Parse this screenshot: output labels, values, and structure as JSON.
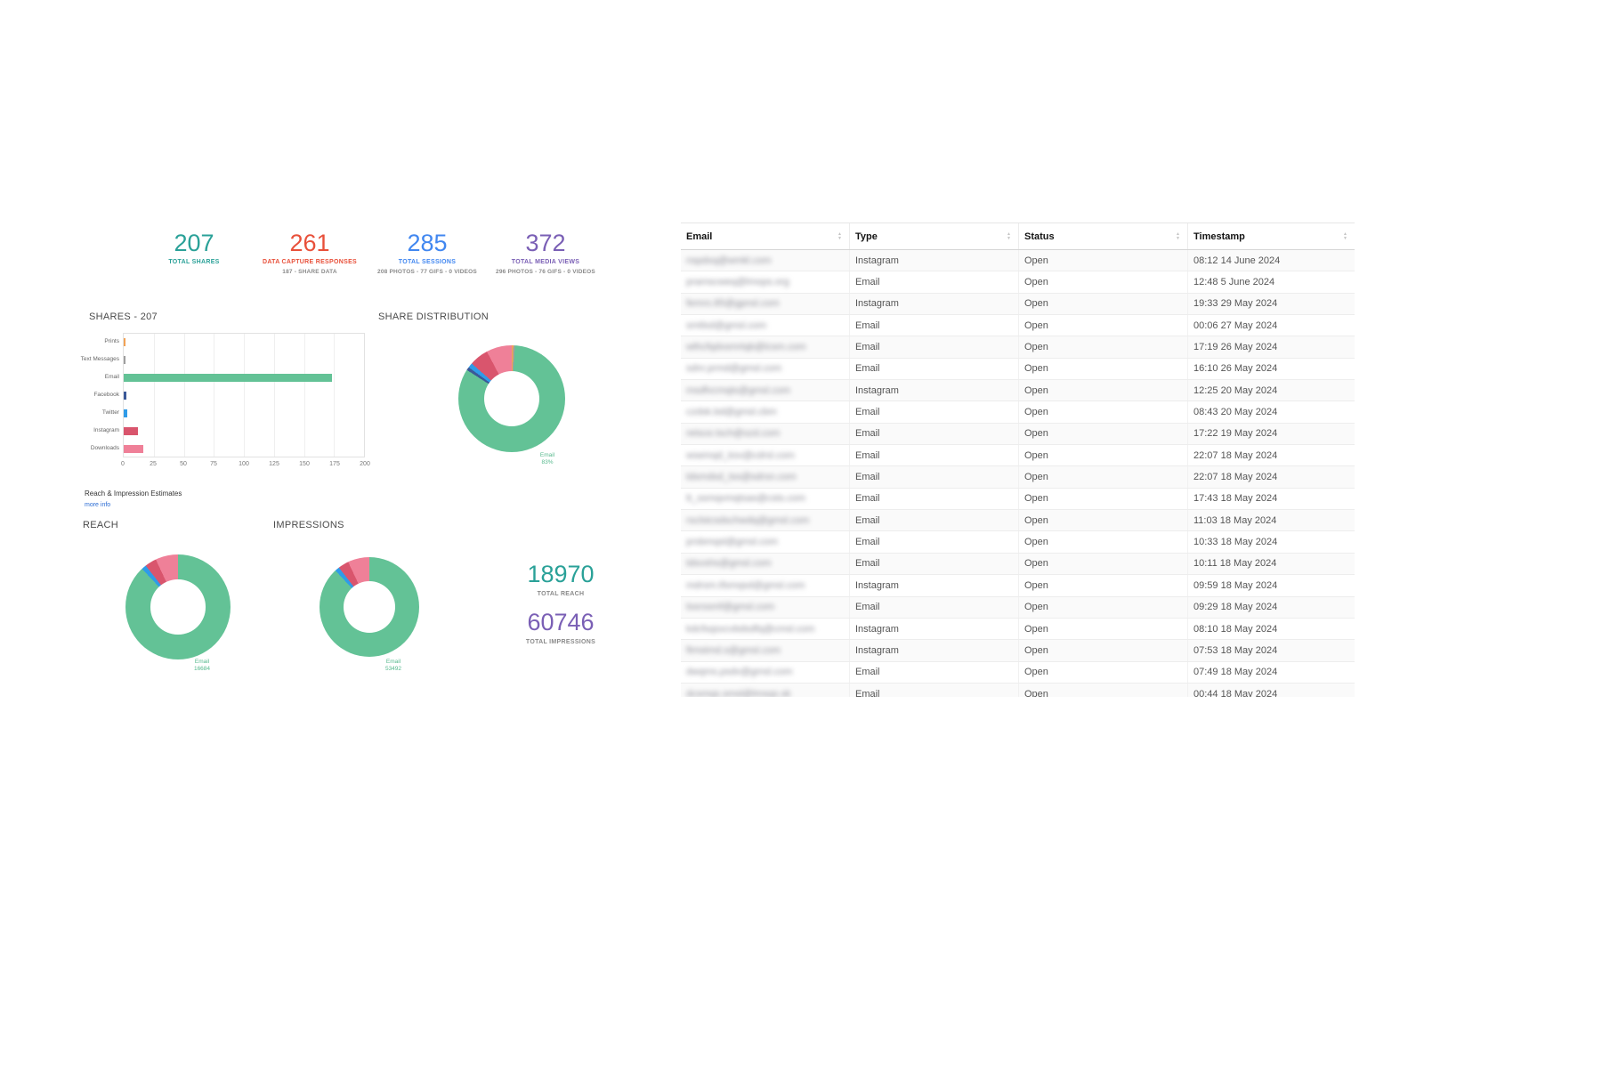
{
  "stats": [
    {
      "value": "207",
      "label": "TOTAL SHARES",
      "sub": "",
      "color": "#2aa198"
    },
    {
      "value": "261",
      "label": "DATA CAPTURE RESPONSES",
      "sub": "187 - SHARE DATA",
      "color": "#e8503a"
    },
    {
      "value": "285",
      "label": "TOTAL SESSIONS",
      "sub": "208 PHOTOS - 77 GIFS - 0 VIDEOS",
      "color": "#4187f0"
    },
    {
      "value": "372",
      "label": "TOTAL MEDIA VIEWS",
      "sub": "296 PHOTOS - 76 GIFS - 0 VIDEOS",
      "color": "#7a5fb5"
    }
  ],
  "shares_section": {
    "title": "SHARES - 207"
  },
  "share_distribution": {
    "title": "SHARE DISTRIBUTION",
    "label_name": "Email",
    "label_value": "83%"
  },
  "estimates": {
    "label": "Reach & Impression Estimates",
    "more_info": "more info",
    "checked": true,
    "checkbox_color": "#cf2e26",
    "check_glyph": "✓"
  },
  "reach": {
    "title": "REACH",
    "label_name": "Email",
    "label_value": "16684"
  },
  "impressions": {
    "title": "IMPRESSIONS",
    "label_name": "Email",
    "label_value": "53492"
  },
  "totals": {
    "reach_value": "18970",
    "reach_label": "TOTAL REACH",
    "reach_color": "#2aa198",
    "impressions_value": "60746",
    "impressions_label": "TOTAL IMPRESSIONS",
    "impressions_color": "#7a5fb5"
  },
  "chart_data": [
    {
      "type": "bar",
      "title": "SHARES - 207",
      "orientation": "horizontal",
      "categories": [
        "Prints",
        "Text Messages",
        "Email",
        "Facebook",
        "Twitter",
        "Instagram",
        "Downloads"
      ],
      "values": [
        1,
        1,
        172,
        2,
        3,
        12,
        16
      ],
      "colors": [
        "#f2a254",
        "#9e9e9e",
        "#63c296",
        "#3b5998",
        "#2f9be8",
        "#d9556d",
        "#ef8098"
      ],
      "xlabel": "",
      "ylabel": "",
      "xlim": [
        0,
        200
      ],
      "ticks": [
        0,
        25,
        50,
        75,
        100,
        125,
        150,
        175,
        200
      ],
      "grid": true
    },
    {
      "type": "pie",
      "title": "SHARE DISTRIBUTION",
      "donut": true,
      "label": "Email 83%",
      "slices": [
        {
          "label": "Prints",
          "value": 1,
          "color": "#f2a254"
        },
        {
          "label": "Text Messages",
          "value": 1,
          "color": "#9e9e9e"
        },
        {
          "label": "Email",
          "value": 172,
          "color": "#63c296"
        },
        {
          "label": "Facebook",
          "value": 2,
          "color": "#3b5998"
        },
        {
          "label": "Twitter",
          "value": 3,
          "color": "#2f9be8"
        },
        {
          "label": "Instagram",
          "value": 12,
          "color": "#d9556d"
        },
        {
          "label": "Downloads",
          "value": 16,
          "color": "#ef8098"
        }
      ]
    },
    {
      "type": "pie",
      "title": "REACH",
      "donut": true,
      "label": "Email 16684",
      "slices": [
        {
          "label": "Email",
          "value": 16684,
          "color": "#63c296"
        },
        {
          "label": "Twitter",
          "value": 285,
          "color": "#2f9be8"
        },
        {
          "label": "Instagram",
          "value": 680,
          "color": "#d9556d"
        },
        {
          "label": "Downloads",
          "value": 1321,
          "color": "#ef8098"
        }
      ]
    },
    {
      "type": "pie",
      "title": "IMPRESSIONS",
      "donut": true,
      "label": "Email 53492",
      "slices": [
        {
          "label": "Email",
          "value": 53492,
          "color": "#63c296"
        },
        {
          "label": "Twitter",
          "value": 900,
          "color": "#2f9be8"
        },
        {
          "label": "Instagram",
          "value": 2100,
          "color": "#d9556d"
        },
        {
          "label": "Downloads",
          "value": 4254,
          "color": "#ef8098"
        }
      ]
    }
  ],
  "table": {
    "columns": [
      {
        "label": "Email"
      },
      {
        "label": "Type"
      },
      {
        "label": "Status"
      },
      {
        "label": "Timestamp"
      }
    ],
    "emails_blurred": true,
    "rows": [
      {
        "email": "nspdxq@wmkl.com",
        "type": "Instagram",
        "status": "Open",
        "timestamp": "08:12 14 June 2024"
      },
      {
        "email": "pramscweq@lmops.org",
        "type": "Email",
        "status": "Open",
        "timestamp": "12:48 5 June 2024"
      },
      {
        "email": "femro.85@gpnsl.com",
        "type": "Instagram",
        "status": "Open",
        "timestamp": "19:33 29 May 2024"
      },
      {
        "email": "smtlsd@gmsl.com",
        "type": "Email",
        "status": "Open",
        "timestamp": "00:06 27 May 2024"
      },
      {
        "email": "wthcfqdxsmrtqb@lcsm.com",
        "type": "Email",
        "status": "Open",
        "timestamp": "17:19 26 May 2024"
      },
      {
        "email": "sdnr.prmd@gmsl.com",
        "type": "Email",
        "status": "Open",
        "timestamp": "16:10 26 May 2024"
      },
      {
        "email": "msdfvcmqts@gmsl.com",
        "type": "Instagram",
        "status": "Open",
        "timestamp": "12:25 20 May 2024"
      },
      {
        "email": "czdsk.bd@gmsl.cbm",
        "type": "Email",
        "status": "Open",
        "timestamp": "08:43 20 May 2024"
      },
      {
        "email": "retsce.tsch@szd.com",
        "type": "Email",
        "status": "Open",
        "timestamp": "17:22 19 May 2024"
      },
      {
        "email": "wsemqd_ksv@cdrsl.com",
        "type": "Email",
        "status": "Open",
        "timestamp": "22:07 18 May 2024"
      },
      {
        "email": "tdsmdsd_tss@sdrsn.com",
        "type": "Email",
        "status": "Open",
        "timestamp": "22:07 18 May 2024"
      },
      {
        "email": "tt_ssmqvmqtsas@csts.com",
        "type": "Email",
        "status": "Open",
        "timestamp": "17:43 18 May 2024"
      },
      {
        "email": "rsclstcsdschwdq@gmsl.com",
        "type": "Email",
        "status": "Open",
        "timestamp": "11:03 18 May 2024"
      },
      {
        "email": "prsbmqsl@gmsl.com",
        "type": "Email",
        "status": "Open",
        "timestamp": "10:33 18 May 2024"
      },
      {
        "email": "tdsvshs@gmsl.com",
        "type": "Email",
        "status": "Open",
        "timestamp": "10:11 18 May 2024"
      },
      {
        "email": "mdrsm.tfsmqsd@gmsl.com",
        "type": "Instagram",
        "status": "Open",
        "timestamp": "09:59 18 May 2024"
      },
      {
        "email": "tssrssmf@gmsl.com",
        "type": "Email",
        "status": "Open",
        "timestamp": "09:29 18 May 2024"
      },
      {
        "email": "kdcfsqsxcvbdsdfq@cmsl.com",
        "type": "Instagram",
        "status": "Open",
        "timestamp": "08:10 18 May 2024"
      },
      {
        "email": "ftmstmd.s@gmsl.com",
        "type": "Instagram",
        "status": "Open",
        "timestamp": "07:53 18 May 2024"
      },
      {
        "email": "dwqms.psdv@gmsl.com",
        "type": "Email",
        "status": "Open",
        "timestamp": "07:49 18 May 2024"
      },
      {
        "email": "dcsmqs.smsl@lmsqs.sk",
        "type": "Email",
        "status": "Open",
        "timestamp": "00:44 18 May 2024"
      }
    ]
  }
}
